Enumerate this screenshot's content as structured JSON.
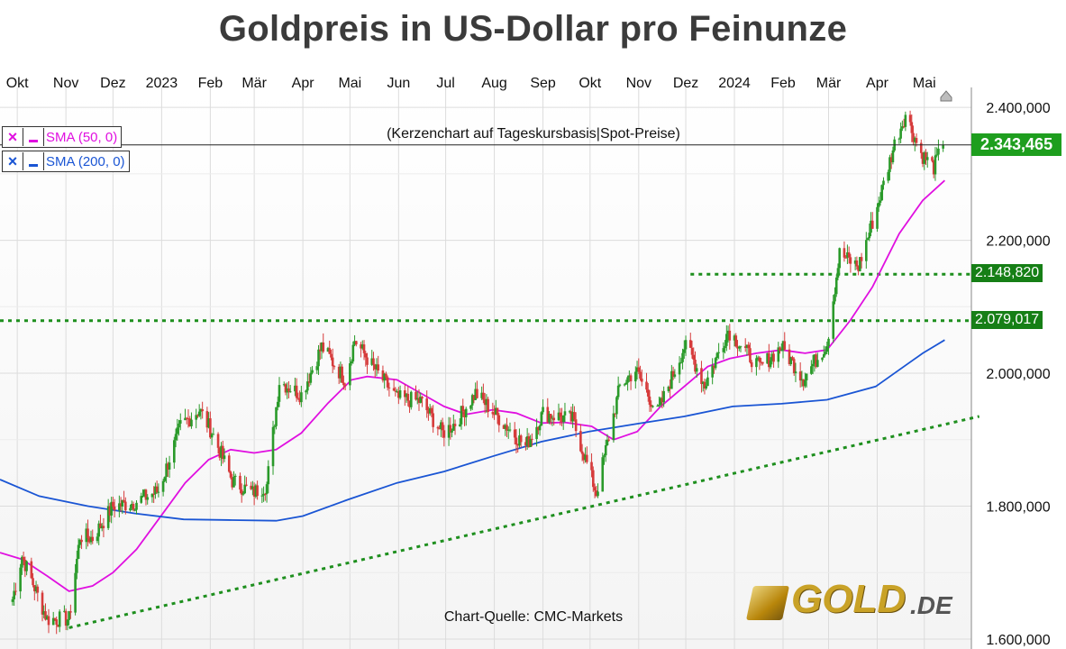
{
  "title": "Goldpreis in US-Dollar pro Feinunze",
  "subtitle": "(Kerzenchart auf Tageskursbasis|Spot-Preise)",
  "source": "Chart-Quelle: CMC-Markets",
  "logo": {
    "word": "GOLD",
    "tld": ".DE"
  },
  "legend": [
    {
      "x": "×",
      "label": "SMA (50, 0)",
      "color": "#e010e0"
    },
    {
      "x": "×",
      "label": "SMA (200, 0)",
      "color": "#1a55d4"
    }
  ],
  "price_labels": [
    {
      "text": "2.343,465",
      "value": 2343.465,
      "color": "#1e9e1e"
    },
    {
      "text": "2.148,820",
      "value": 2148.82,
      "color": "#167f16"
    },
    {
      "text": "2.079,017",
      "value": 2079.017,
      "color": "#167f16"
    }
  ],
  "chart_data": {
    "type": "candlestick",
    "title": "Goldpreis in US-Dollar pro Feinunze",
    "subtitle": "(Kerzenchart auf Tageskursbasis|Spot-Preise)",
    "x_tick_labels": [
      "Okt",
      "Nov",
      "Dez",
      "2023",
      "Feb",
      "Mär",
      "Apr",
      "Mai",
      "Jun",
      "Jul",
      "Aug",
      "Sep",
      "Okt",
      "Nov",
      "Dez",
      "2024",
      "Feb",
      "Mär",
      "Apr",
      "Mai"
    ],
    "xlim": [
      "2022-09-20",
      "2024-05-31"
    ],
    "y_tick_labels": [
      "1.600,000",
      "1.800,000",
      "2.000,000",
      "2.200,000",
      "2.400,000"
    ],
    "y_ticks": [
      1600,
      1800,
      2000,
      2200,
      2400
    ],
    "ylim": [
      1585,
      2430
    ],
    "grid": true,
    "last_price": 2343.465,
    "horizontal_levels": [
      {
        "value": 2079.017,
        "from": "start",
        "style": "dotted",
        "color": "#1e8f1e"
      },
      {
        "value": 2148.82,
        "from": "2023-12-04",
        "style": "dotted",
        "color": "#1e8f1e"
      }
    ],
    "trendline": {
      "from": {
        "date": "2022-11-03",
        "value": 1617
      },
      "to": {
        "date": "2024-06-05",
        "value": 1935
      },
      "style": "dotted",
      "color": "#1e8f1e"
    },
    "close_anchors": [
      {
        "date": "2022-09-28",
        "close": 1660
      },
      {
        "date": "2022-10-04",
        "close": 1725
      },
      {
        "date": "2022-10-20",
        "close": 1630
      },
      {
        "date": "2022-11-03",
        "close": 1630
      },
      {
        "date": "2022-11-10",
        "close": 1755
      },
      {
        "date": "2022-11-18",
        "close": 1752
      },
      {
        "date": "2022-12-01",
        "close": 1800
      },
      {
        "date": "2022-12-14",
        "close": 1805
      },
      {
        "date": "2022-12-30",
        "close": 1823
      },
      {
        "date": "2023-01-13",
        "close": 1920
      },
      {
        "date": "2023-01-25",
        "close": 1945
      },
      {
        "date": "2023-02-02",
        "close": 1912
      },
      {
        "date": "2023-02-15",
        "close": 1838
      },
      {
        "date": "2023-02-28",
        "close": 1820
      },
      {
        "date": "2023-03-09",
        "close": 1832
      },
      {
        "date": "2023-03-17",
        "close": 1988
      },
      {
        "date": "2023-03-31",
        "close": 1968
      },
      {
        "date": "2023-04-13",
        "close": 2040
      },
      {
        "date": "2023-04-28",
        "close": 1990
      },
      {
        "date": "2023-05-04",
        "close": 2050
      },
      {
        "date": "2023-05-15",
        "close": 2012
      },
      {
        "date": "2023-05-31",
        "close": 1962
      },
      {
        "date": "2023-06-15",
        "close": 1958
      },
      {
        "date": "2023-06-29",
        "close": 1910
      },
      {
        "date": "2023-07-07",
        "close": 1925
      },
      {
        "date": "2023-07-20",
        "close": 1970
      },
      {
        "date": "2023-08-03",
        "close": 1935
      },
      {
        "date": "2023-08-21",
        "close": 1890
      },
      {
        "date": "2023-09-01",
        "close": 1940
      },
      {
        "date": "2023-09-20",
        "close": 1930
      },
      {
        "date": "2023-10-05",
        "close": 1820
      },
      {
        "date": "2023-10-20",
        "close": 1980
      },
      {
        "date": "2023-10-30",
        "close": 2005
      },
      {
        "date": "2023-11-13",
        "close": 1940
      },
      {
        "date": "2023-11-30",
        "close": 2040
      },
      {
        "date": "2023-12-04",
        "close": 2030
      },
      {
        "date": "2023-12-13",
        "close": 1982
      },
      {
        "date": "2023-12-28",
        "close": 2065
      },
      {
        "date": "2024-01-17",
        "close": 2008
      },
      {
        "date": "2024-01-31",
        "close": 2040
      },
      {
        "date": "2024-02-14",
        "close": 1992
      },
      {
        "date": "2024-02-29",
        "close": 2045
      },
      {
        "date": "2024-03-08",
        "close": 2180
      },
      {
        "date": "2024-03-20",
        "close": 2160
      },
      {
        "date": "2024-04-01",
        "close": 2250
      },
      {
        "date": "2024-04-12",
        "close": 2345
      },
      {
        "date": "2024-04-19",
        "close": 2390
      },
      {
        "date": "2024-04-29",
        "close": 2330
      },
      {
        "date": "2024-05-07",
        "close": 2310
      },
      {
        "date": "2024-05-13",
        "close": 2343.465
      }
    ],
    "series": [
      {
        "name": "SMA (50, 0)",
        "type": "line",
        "color": "#e010e0",
        "points": [
          [
            "2022-09-20",
            1730
          ],
          [
            "2022-10-04",
            1720
          ],
          [
            "2022-10-20",
            1695
          ],
          [
            "2022-11-03",
            1672
          ],
          [
            "2022-11-18",
            1680
          ],
          [
            "2022-12-01",
            1700
          ],
          [
            "2022-12-16",
            1735
          ],
          [
            "2022-12-30",
            1780
          ],
          [
            "2023-01-16",
            1835
          ],
          [
            "2023-01-31",
            1870
          ],
          [
            "2023-02-14",
            1885
          ],
          [
            "2023-03-01",
            1880
          ],
          [
            "2023-03-15",
            1885
          ],
          [
            "2023-03-31",
            1910
          ],
          [
            "2023-04-17",
            1955
          ],
          [
            "2023-05-02",
            1990
          ],
          [
            "2023-05-12",
            1995
          ],
          [
            "2023-05-31",
            1990
          ],
          [
            "2023-06-15",
            1970
          ],
          [
            "2023-06-30",
            1950
          ],
          [
            "2023-07-14",
            1938
          ],
          [
            "2023-07-31",
            1945
          ],
          [
            "2023-08-15",
            1940
          ],
          [
            "2023-08-31",
            1925
          ],
          [
            "2023-09-15",
            1926
          ],
          [
            "2023-10-02",
            1920
          ],
          [
            "2023-10-16",
            1900
          ],
          [
            "2023-10-31",
            1912
          ],
          [
            "2023-11-15",
            1950
          ],
          [
            "2023-11-30",
            1980
          ],
          [
            "2023-12-15",
            2010
          ],
          [
            "2023-12-29",
            2022
          ],
          [
            "2024-01-15",
            2030
          ],
          [
            "2024-01-31",
            2035
          ],
          [
            "2024-02-15",
            2030
          ],
          [
            "2024-02-29",
            2035
          ],
          [
            "2024-03-15",
            2080
          ],
          [
            "2024-03-29",
            2130
          ],
          [
            "2024-04-15",
            2210
          ],
          [
            "2024-04-30",
            2260
          ],
          [
            "2024-05-14",
            2290
          ]
        ]
      },
      {
        "name": "SMA (200, 0)",
        "type": "line",
        "color": "#1a55d4",
        "points": [
          [
            "2022-09-20",
            1840
          ],
          [
            "2022-10-15",
            1815
          ],
          [
            "2022-11-15",
            1800
          ],
          [
            "2022-12-15",
            1789
          ],
          [
            "2023-01-15",
            1780
          ],
          [
            "2023-02-15",
            1779
          ],
          [
            "2023-03-15",
            1778
          ],
          [
            "2023-04-01",
            1785
          ],
          [
            "2023-04-30",
            1810
          ],
          [
            "2023-05-31",
            1835
          ],
          [
            "2023-06-30",
            1852
          ],
          [
            "2023-07-31",
            1875
          ],
          [
            "2023-08-31",
            1897
          ],
          [
            "2023-09-30",
            1912
          ],
          [
            "2023-10-31",
            1924
          ],
          [
            "2023-11-30",
            1935
          ],
          [
            "2023-12-31",
            1950
          ],
          [
            "2024-01-31",
            1954
          ],
          [
            "2024-02-29",
            1960
          ],
          [
            "2024-03-31",
            1980
          ],
          [
            "2024-04-15",
            2005
          ],
          [
            "2024-04-30",
            2030
          ],
          [
            "2024-05-14",
            2050
          ]
        ]
      }
    ]
  }
}
